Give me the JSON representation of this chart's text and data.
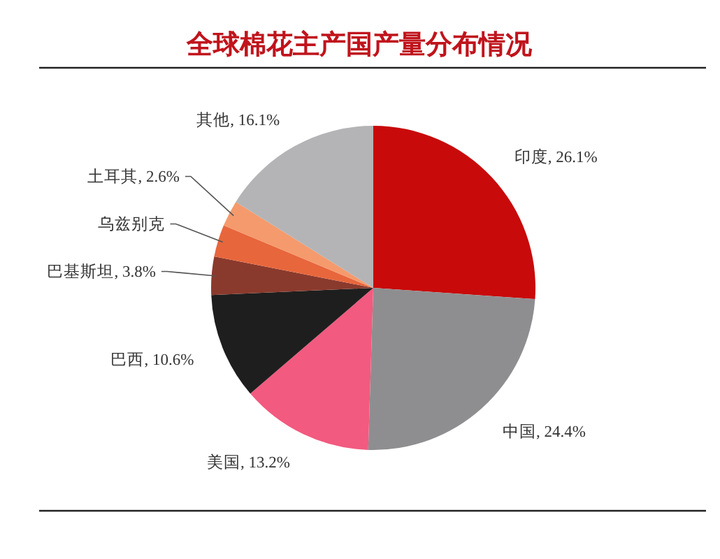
{
  "chart_data": {
    "type": "pie",
    "title": "全球棉花主产国产量分布情况",
    "categories": [
      "印度",
      "中国",
      "美国",
      "巴西",
      "巴基斯坦",
      "乌兹别克",
      "土耳其",
      "其他"
    ],
    "values": [
      26.1,
      24.4,
      13.2,
      10.6,
      3.8,
      3.2,
      2.6,
      16.1
    ],
    "colors": [
      "#c80a0a",
      "#8e8e90",
      "#f25a7f",
      "#1e1e1e",
      "#8a3a2c",
      "#e8663c",
      "#f59a6c",
      "#b4b4b6"
    ],
    "value_labels": [
      "26.1%",
      "24.4%",
      "13.2%",
      "10.6%",
      "3.8%",
      null,
      "2.6%",
      "16.1%"
    ]
  }
}
